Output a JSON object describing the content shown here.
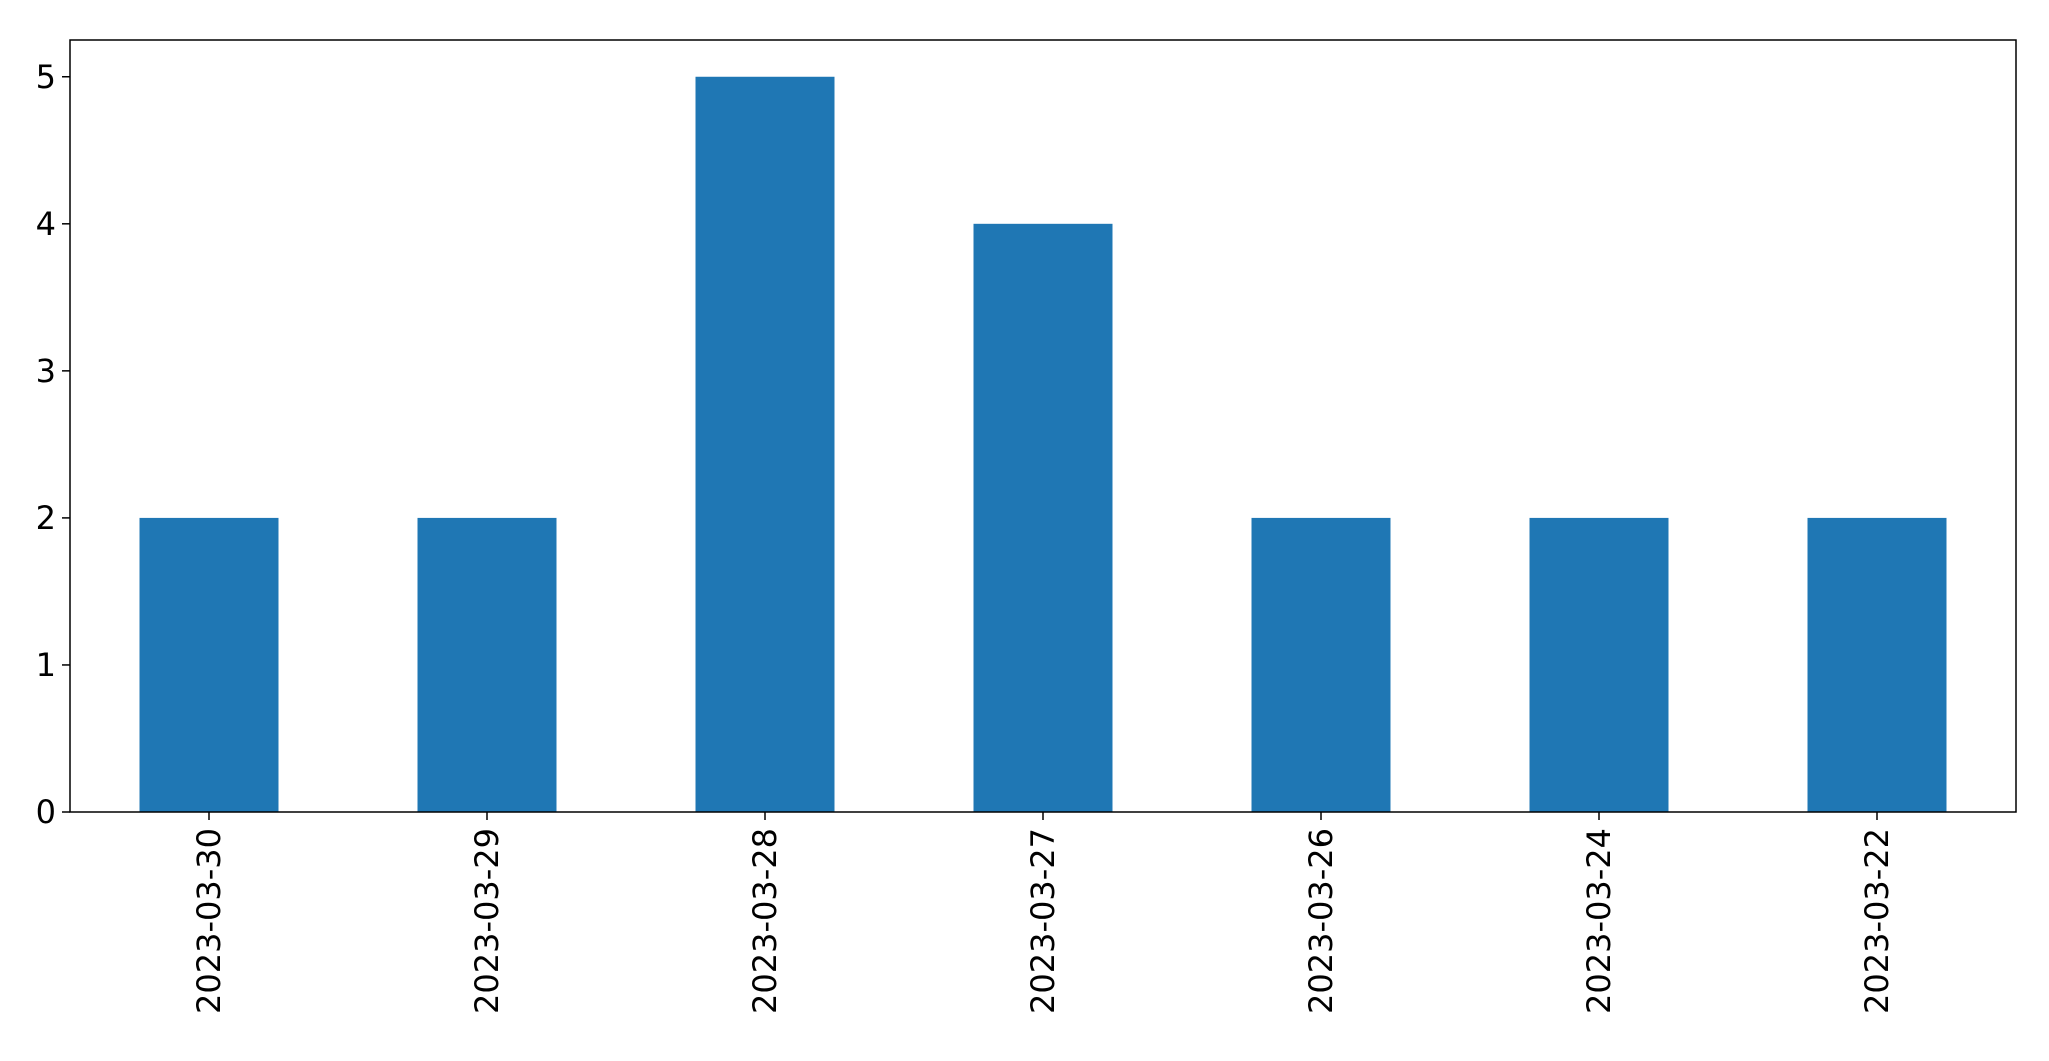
{
  "chart_data": {
    "type": "bar",
    "title": "",
    "xlabel": "",
    "ylabel": "",
    "categories": [
      "2023-03-30",
      "2023-03-29",
      "2023-03-28",
      "2023-03-27",
      "2023-03-26",
      "2023-03-24",
      "2023-03-22"
    ],
    "values": [
      2,
      2,
      5,
      4,
      2,
      2,
      2
    ],
    "ylim": [
      0,
      5.25
    ],
    "yticks": [
      "0",
      "1",
      "2",
      "3",
      "4",
      "5"
    ],
    "bar_color": "#1f77b4",
    "grid": false,
    "legend": "none"
  }
}
